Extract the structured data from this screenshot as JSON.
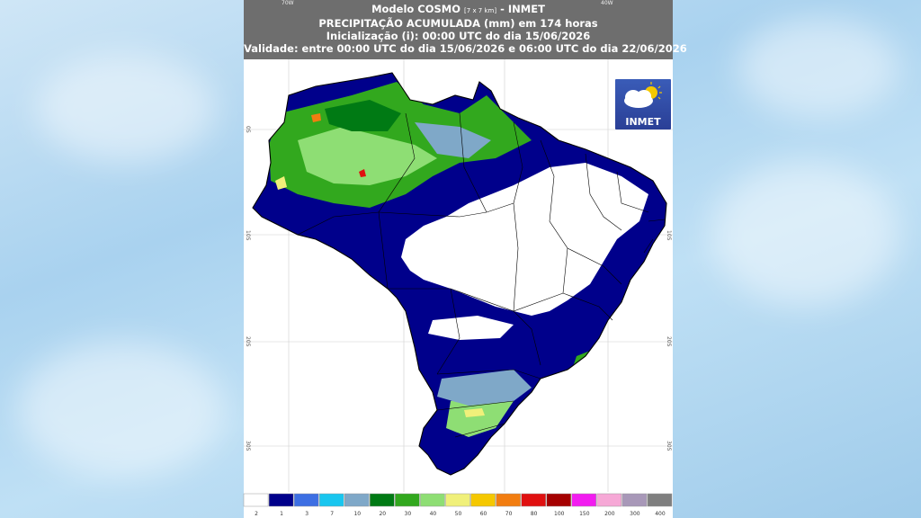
{
  "header": {
    "title_main": "Modelo COSMO",
    "title_resolution": "[7 x 7 km]",
    "title_suffix": "- INMET",
    "line2": "PRECIPITAÇÃO ACUMULADA (mm) em 174 horas",
    "line3": "Inicialização (i): 00:00 UTC do dia 15/06/2026",
    "line4": "Validade: entre 00:00 UTC do dia 15/06/2026 e 06:00 UTC do dia 22/06/2026"
  },
  "axes": {
    "lon_top": [
      "70W",
      "40W"
    ],
    "lat_left": [
      "0S",
      "10S",
      "20S",
      "30S"
    ],
    "lat_right": [
      "10S",
      "20S",
      "30S"
    ]
  },
  "logo": {
    "text": "INMET"
  },
  "legend": {
    "title": "",
    "colors": [
      "#ffffff",
      "#00008b",
      "#3d6fe3",
      "#19c6ef",
      "#7fa8c8",
      "#007a14",
      "#32a81e",
      "#8ede74",
      "#f0f07a",
      "#f5c800",
      "#f27d10",
      "#e01010",
      "#a50000",
      "#f21cf0",
      "#f6a8d6",
      "#a898b8",
      "#7f7f7f"
    ],
    "labels": [
      "2",
      "1",
      "3",
      "7",
      "10",
      "20",
      "30",
      "40",
      "50",
      "60",
      "70",
      "80",
      "100",
      "150",
      "200",
      "300",
      "400"
    ]
  }
}
